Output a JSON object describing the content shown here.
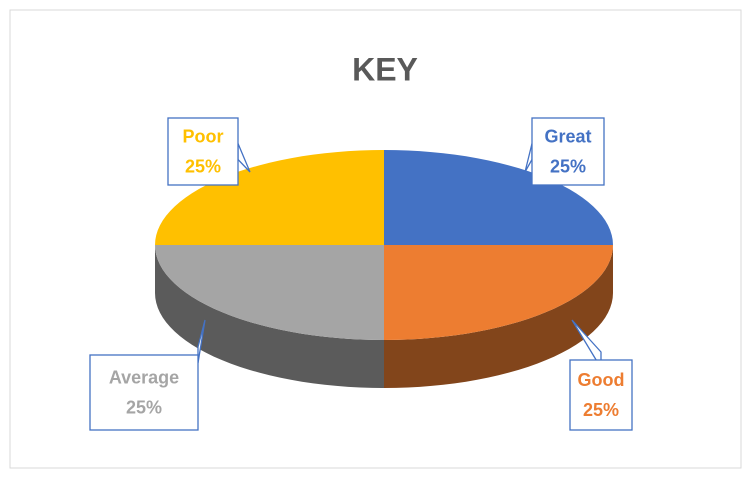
{
  "chart_data": {
    "type": "pie",
    "title": "KEY",
    "categories": [
      "Great",
      "Good",
      "Average",
      "Poor"
    ],
    "values": [
      25,
      25,
      25,
      25
    ],
    "value_labels": [
      "25%",
      "25%",
      "25%",
      "25%"
    ],
    "colors": [
      "#4472c4",
      "#ed7d31",
      "#a5a5a5",
      "#ffc000"
    ]
  }
}
